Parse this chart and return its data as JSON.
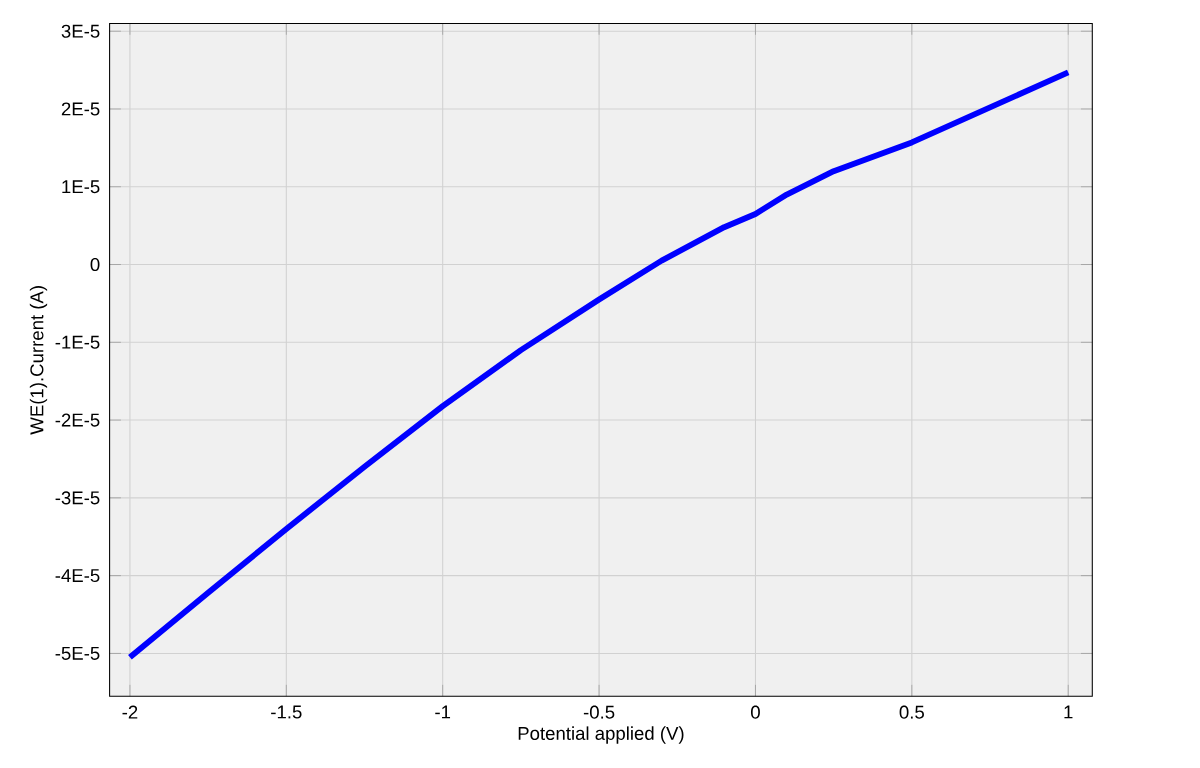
{
  "chart_data": {
    "type": "line",
    "xlabel": "Potential applied (V)",
    "ylabel": "WE(1).Current (A)",
    "x": [
      -2,
      -1.75,
      -1.5,
      -1.25,
      -1,
      -0.75,
      -0.5,
      -0.3,
      -0.1,
      0,
      0.1,
      0.25,
      0.5,
      0.75,
      1
    ],
    "series": [
      {
        "color": "#0000ff",
        "values": [
          -5.05e-05,
          -4.22e-05,
          -3.4e-05,
          -2.6e-05,
          -1.82e-05,
          -1.1e-05,
          -4.5e-06,
          5e-07,
          4.8e-06,
          6.5e-06,
          9e-06,
          1.2e-05,
          1.57e-05,
          2.02e-05,
          2.47e-05
        ]
      }
    ],
    "xlim": [
      -2.065,
      1.077
    ],
    "ylim": [
      -5.55e-05,
      3.1e-05
    ],
    "xticks": [
      -2,
      -1.5,
      -1,
      -0.5,
      0,
      0.5,
      1
    ],
    "yticks": [
      {
        "value": -5e-05,
        "label": "-5E-5"
      },
      {
        "value": -4e-05,
        "label": "-4E-5"
      },
      {
        "value": -3e-05,
        "label": "-3E-5"
      },
      {
        "value": -2e-05,
        "label": "-2E-5"
      },
      {
        "value": -1e-05,
        "label": "-1E-5"
      },
      {
        "value": 0,
        "label": "0"
      },
      {
        "value": 1e-05,
        "label": "1E-5"
      },
      {
        "value": 2e-05,
        "label": "2E-5"
      },
      {
        "value": 3e-05,
        "label": "3E-5"
      }
    ],
    "grid": true,
    "marker": "none",
    "line_style": "solid"
  }
}
